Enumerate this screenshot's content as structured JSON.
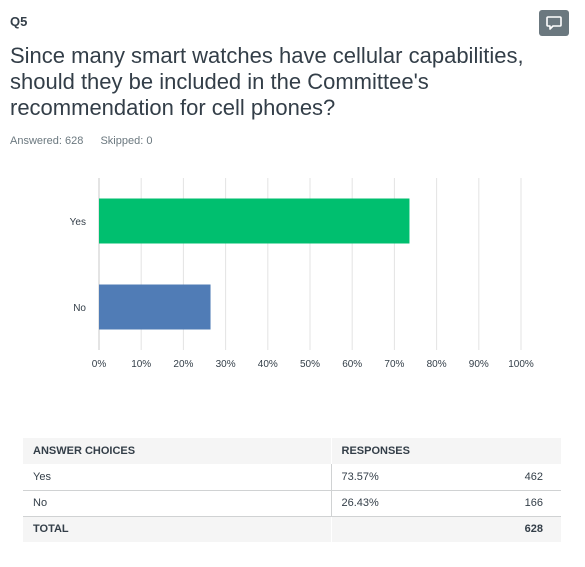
{
  "question": {
    "number": "Q5",
    "title": "Since many smart watches have cellular capabilities, should they be included in the Committee's recommendation for cell phones?",
    "answered": "Answered: 628",
    "skipped": "Skipped: 0",
    "comment_icon": "speech-bubble-icon"
  },
  "chart_data": {
    "type": "bar",
    "orientation": "horizontal",
    "categories": [
      "Yes",
      "No"
    ],
    "values": [
      73.57,
      26.43
    ],
    "colors": [
      "#00bf6f",
      "#507cb6"
    ],
    "xlim": [
      0,
      100
    ],
    "ticks": [
      "0%",
      "10%",
      "20%",
      "30%",
      "40%",
      "50%",
      "60%",
      "70%",
      "80%",
      "90%",
      "100%"
    ],
    "grid": true
  },
  "table": {
    "headers": [
      "ANSWER CHOICES",
      "RESPONSES",
      ""
    ],
    "rows": [
      {
        "choice": "Yes",
        "percent": "73.57%",
        "count": "462"
      },
      {
        "choice": "No",
        "percent": "26.43%",
        "count": "166"
      }
    ],
    "total": {
      "label": "TOTAL",
      "count": "628"
    }
  },
  "colors": {
    "yes_bar": "#00bf6f",
    "no_bar": "#507cb6",
    "comment_button": "#6b787f"
  }
}
